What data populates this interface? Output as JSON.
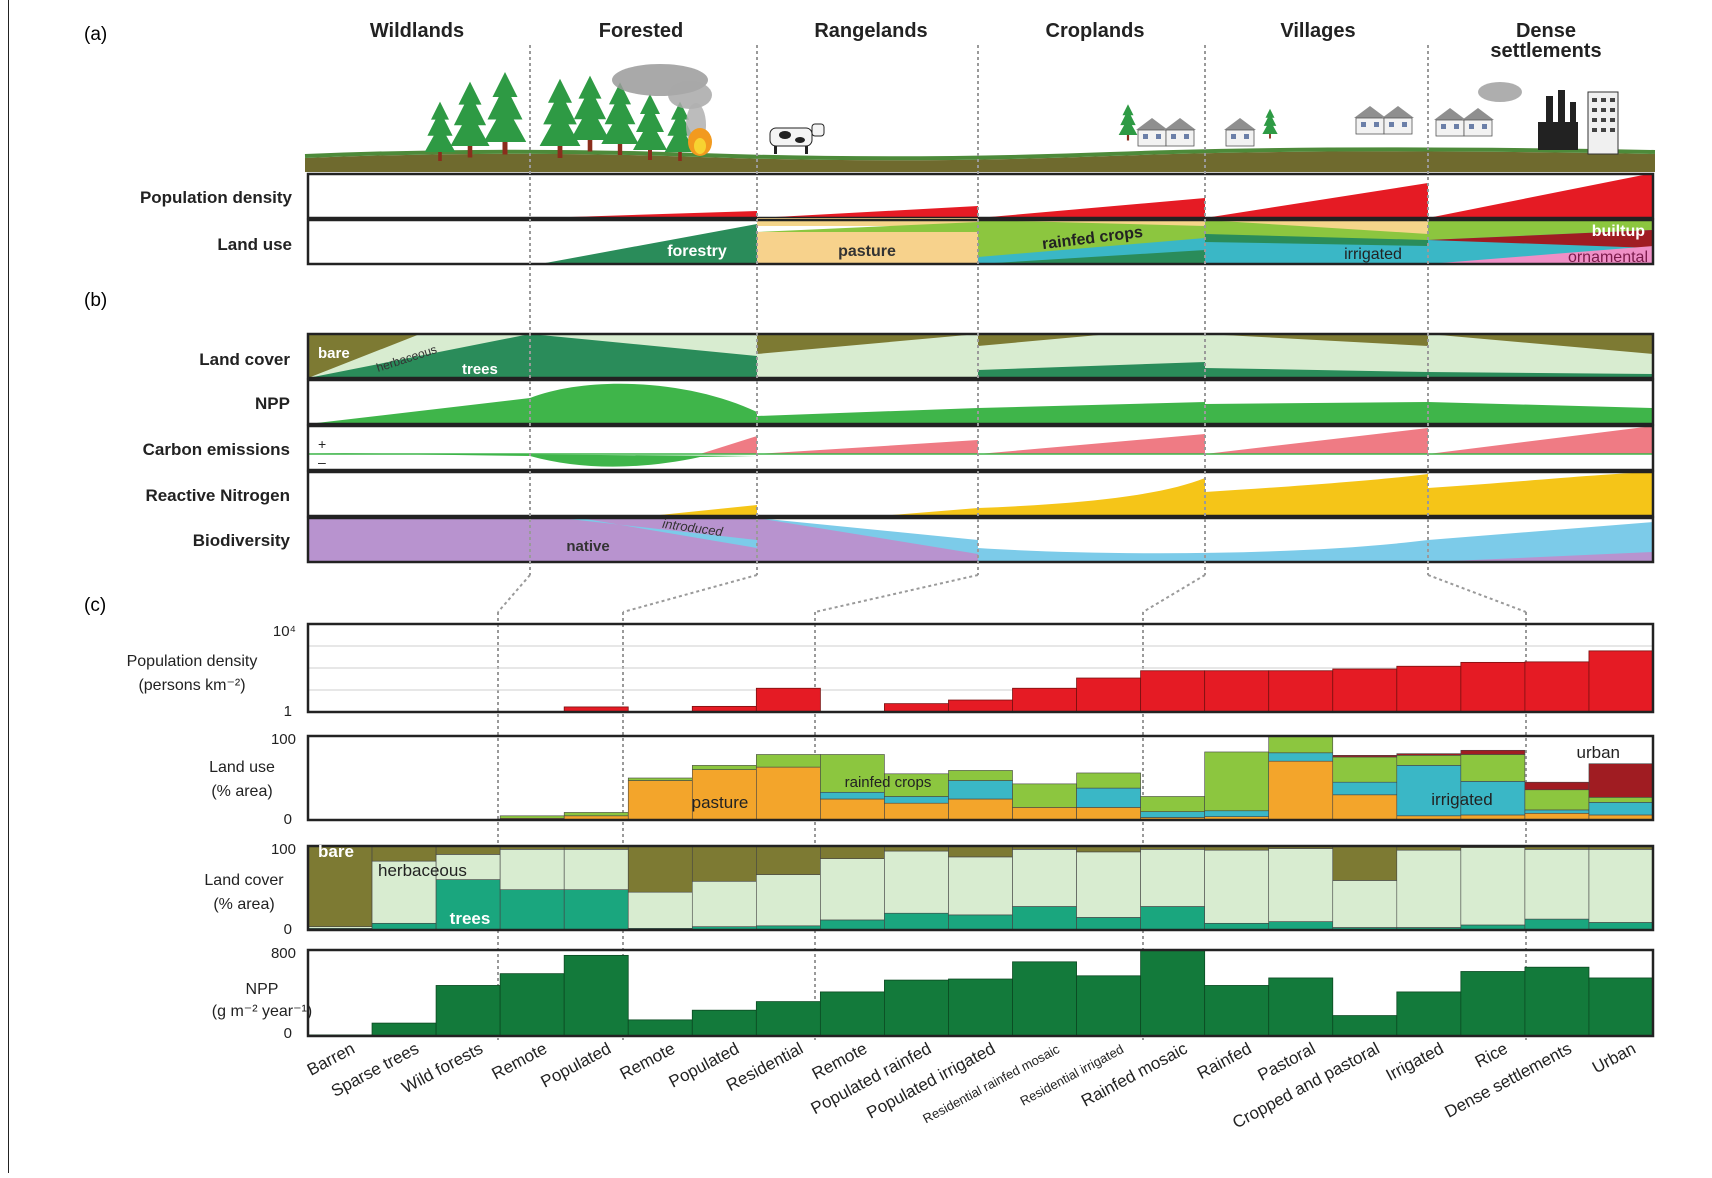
{
  "panels": {
    "a": "(a)",
    "b": "(b)",
    "c": "(c)"
  },
  "regions": [
    {
      "lines": [
        "Wildlands"
      ]
    },
    {
      "lines": [
        "Forested"
      ]
    },
    {
      "lines": [
        "Rangelands"
      ]
    },
    {
      "lines": [
        "Croplands"
      ]
    },
    {
      "lines": [
        "Villages"
      ]
    },
    {
      "lines": [
        "Dense",
        "settlements"
      ]
    }
  ],
  "panel_a": {
    "rows": {
      "population": "Population density",
      "landuse": "Land use"
    },
    "labels": {
      "forestry": "forestry",
      "pasture": "pasture",
      "rainfed": "rainfed crops",
      "irrigated": "irrigated",
      "builtup": "builtup",
      "ornamental": "ornamental"
    }
  },
  "panel_b": {
    "rows": {
      "landcover": "Land cover",
      "npp": "NPP",
      "carbon": "Carbon emissions",
      "nitrogen": "Reactive Nitrogen",
      "biodiversity": "Biodiversity"
    },
    "labels": {
      "bare": "bare",
      "herbaceous": "herbaceous",
      "trees": "trees",
      "plus": "+",
      "minus": "–",
      "native": "native",
      "introduced": "introduced"
    }
  },
  "panel_c": {
    "rows": {
      "population": {
        "lines": [
          "Population density",
          "(persons km⁻²)"
        ],
        "ticks": [
          "10⁴",
          "1"
        ]
      },
      "landuse": {
        "lines": [
          "Land use",
          "(% area)"
        ],
        "ticks": [
          "100",
          "0"
        ]
      },
      "landcover": {
        "lines": [
          "Land cover",
          "(% area)"
        ],
        "ticks": [
          "100",
          "0"
        ]
      },
      "npp": {
        "lines": [
          "NPP",
          "(g m⁻² year⁻¹)"
        ],
        "ticks": [
          "800",
          "0"
        ]
      }
    },
    "labels": {
      "pasture": "pasture",
      "rainfed": "rainfed crops",
      "irrigated": "irrigated",
      "urban": "urban",
      "bare": "bare",
      "herbaceous": "herbaceous",
      "trees": "trees"
    }
  },
  "colors": {
    "population": "#e51b24",
    "forestry": "#2a8c5a",
    "pasture": "#f3a52b",
    "rainfed": "#8cc63f",
    "irrigated": "#3ab7c6",
    "urban": "#a01c22",
    "ornamental": "#ef8fc6",
    "bare": "#7d7a33",
    "herbaceous": "#d8ecd0",
    "trees": "#1aa67e",
    "npp": "#3fb54a",
    "npp_bar": "#137a3b",
    "carbon": "#ef7b84",
    "nitrogen": "#f5c518",
    "native": "#b893cf",
    "introduced": "#7ccbe9"
  },
  "chart_data": [
    {
      "type": "bar",
      "categories": [
        "Barren",
        "Sparse trees",
        "Wild forests",
        "Remote",
        "Populated",
        "Remote",
        "Populated",
        "Residential",
        "Remote",
        "Populated rainfed",
        "Populated irrigated",
        "Residential rainfed mosaic",
        "Residential irrigated",
        "Rainfed mosaic",
        "Rainfed",
        "Pastoral",
        "Cropped and pastoral",
        "Irrigated",
        "Rice",
        "Dense settlements",
        "Urban"
      ],
      "ylabel": "Population density (persons km⁻²)",
      "yscale": "log",
      "ylim": [
        1,
        10000
      ],
      "series": [
        {
          "values": [
            0,
            0,
            0,
            0,
            1.7,
            0,
            1.8,
            12,
            0,
            2.4,
            3.5,
            12,
            35,
            75,
            75,
            75,
            90,
            120,
            180,
            190,
            600
          ]
        }
      ]
    },
    {
      "type": "bar",
      "stacked": true,
      "ylabel": "Land use (% area)",
      "ylim": [
        0,
        100
      ],
      "series": [
        {
          "name": "pasture",
          "values": [
            0,
            0,
            0,
            2,
            5,
            47,
            60,
            63,
            25,
            20,
            25,
            15,
            15,
            3,
            4,
            70,
            30,
            5,
            6,
            8,
            6
          ]
        },
        {
          "name": "irrigated",
          "values": [
            0,
            0,
            0,
            0,
            0,
            0,
            0,
            0,
            8,
            8,
            22,
            0,
            23,
            7,
            7,
            10,
            15,
            60,
            40,
            4,
            15
          ]
        },
        {
          "name": "rainfed crops",
          "values": [
            0,
            0,
            0,
            3,
            4,
            3,
            5,
            15,
            45,
            27,
            12,
            28,
            18,
            18,
            70,
            20,
            30,
            12,
            32,
            24,
            6
          ]
        },
        {
          "name": "urban",
          "values": [
            0,
            0,
            0,
            0,
            0,
            0,
            0,
            0,
            0,
            0,
            0,
            0,
            0,
            0,
            0,
            0,
            2,
            2,
            5,
            9,
            40
          ]
        }
      ]
    },
    {
      "type": "bar",
      "stacked": true,
      "ylabel": "Land cover (% area)",
      "ylim": [
        0,
        100
      ],
      "series": [
        {
          "name": "trees",
          "values": [
            2,
            8,
            60,
            48,
            48,
            2,
            4,
            5,
            12,
            20,
            18,
            28,
            15,
            28,
            8,
            10,
            3,
            3,
            6,
            13,
            9
          ]
        },
        {
          "name": "herbaceous",
          "values": [
            2,
            74,
            30,
            48,
            48,
            43,
            54,
            61,
            73,
            74,
            69,
            68,
            78,
            68,
            87,
            87,
            56,
            92,
            92,
            83,
            87
          ]
        },
        {
          "name": "bare",
          "values": [
            96,
            18,
            10,
            4,
            4,
            55,
            42,
            34,
            15,
            6,
            13,
            4,
            7,
            4,
            5,
            3,
            41,
            5,
            2,
            4,
            4
          ]
        }
      ]
    },
    {
      "type": "bar",
      "ylabel": "NPP (g m⁻² year⁻¹)",
      "ylim": [
        0,
        800
      ],
      "series": [
        {
          "values": [
            10,
            120,
            470,
            580,
            750,
            150,
            240,
            320,
            410,
            520,
            530,
            690,
            560,
            820,
            470,
            540,
            190,
            410,
            600,
            640,
            540
          ]
        }
      ]
    }
  ]
}
